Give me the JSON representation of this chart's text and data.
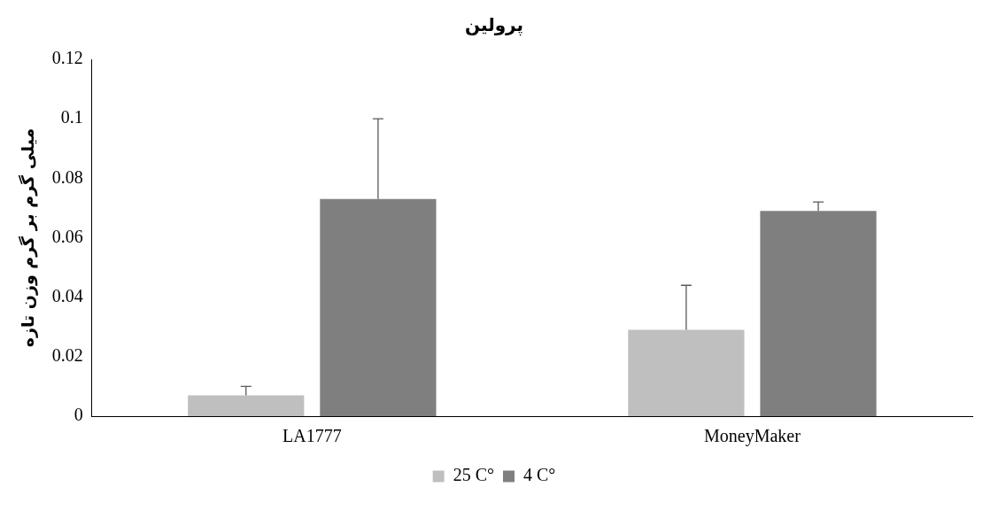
{
  "chart_data": {
    "type": "bar",
    "title": "پرولین",
    "ylabel": "میلی گرم بر گرم وزن تازه",
    "categories": [
      "LA1777",
      "MoneyMaker"
    ],
    "series": [
      {
        "name": "25 C°",
        "color": "#bfbfbf",
        "values": [
          0.007,
          0.029
        ],
        "errors": [
          [
            0.007,
            0.01
          ],
          [
            0.029,
            0.044
          ]
        ]
      },
      {
        "name": "4 C°",
        "color": "#7f7f7f",
        "values": [
          0.073,
          0.069
        ],
        "errors": [
          [
            0.073,
            0.1
          ],
          [
            0.069,
            0.072
          ]
        ]
      }
    ],
    "ylim": [
      0,
      0.12
    ],
    "yticks": [
      0,
      0.02,
      0.04,
      0.06,
      0.08,
      0.1,
      0.12
    ],
    "grid": false,
    "legend": "bottom"
  }
}
